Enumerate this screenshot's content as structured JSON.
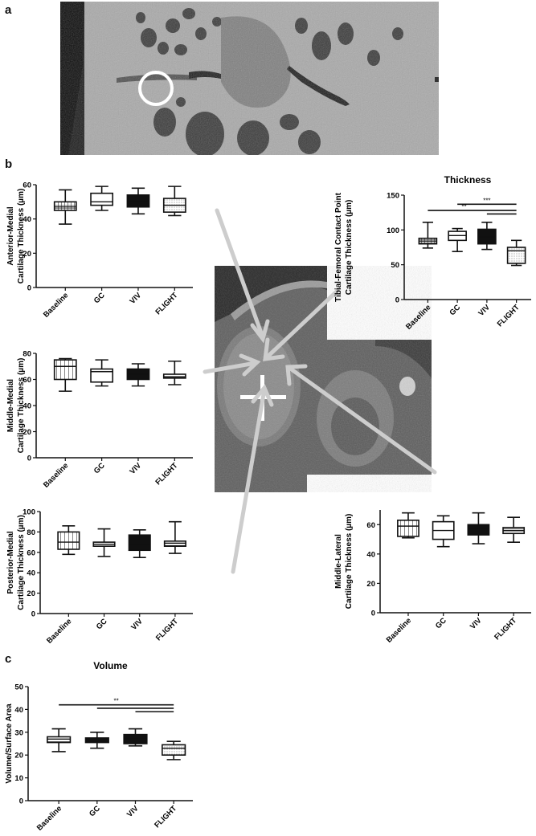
{
  "panels": {
    "a": "a",
    "b": "b",
    "c": "c"
  },
  "images": {
    "top_mri": {
      "name": "sagittal knee MRI with white circle marker",
      "marker": "circle"
    },
    "center_mri": {
      "name": "axial knee MRI with crosshair and arrows",
      "marker": "crosshair"
    }
  },
  "colors": {
    "axis": "#111111",
    "arrow": "#cfcfcf",
    "marker": "#ffffff"
  },
  "chart_data": [
    {
      "id": "anterior_medial",
      "type": "box",
      "title": "",
      "ylabel_line1": "Anterior-Medial",
      "ylabel_line2": "Cartilage Thickness (µm)",
      "categories": [
        "Baseline",
        "GC",
        "VIV",
        "FLIGHT"
      ],
      "ylim": [
        0,
        60
      ],
      "yticks": [
        0,
        20,
        40,
        60
      ],
      "boxes": [
        {
          "min": 37,
          "q1": 45,
          "median": 47,
          "q3": 50,
          "max": 57,
          "fill": "grid"
        },
        {
          "min": 45,
          "q1": 48,
          "median": 50,
          "q3": 55,
          "max": 59,
          "fill": "white"
        },
        {
          "min": 43,
          "q1": 47,
          "median": 50,
          "q3": 54,
          "max": 58,
          "fill": "black"
        },
        {
          "min": 42,
          "q1": 44,
          "median": 48,
          "q3": 52,
          "max": 59,
          "fill": "dots"
        }
      ],
      "significance": []
    },
    {
      "id": "tibial_femoral",
      "type": "box",
      "title": "Thickness",
      "ylabel_line1": "Tibial-Femoral  Contact  Point",
      "ylabel_line2": "Cartilage Thickness (µm)",
      "categories": [
        "Baseline",
        "GC",
        "VIV",
        "FLIGHT"
      ],
      "ylim": [
        0,
        150
      ],
      "yticks": [
        0,
        50,
        100,
        150
      ],
      "boxes": [
        {
          "min": 74,
          "q1": 80,
          "median": 84,
          "q3": 88,
          "max": 111,
          "fill": "grid"
        },
        {
          "min": 69,
          "q1": 85,
          "median": 92,
          "q3": 98,
          "max": 102,
          "fill": "white"
        },
        {
          "min": 72,
          "q1": 80,
          "median": 90,
          "q3": 101,
          "max": 111,
          "fill": "black"
        },
        {
          "min": 49,
          "q1": 52,
          "median": 70,
          "q3": 75,
          "max": 85,
          "fill": "dots"
        }
      ],
      "significance": [
        {
          "from": 1,
          "to": 3,
          "label": "***",
          "level": 137
        },
        {
          "from": 0,
          "to": 3,
          "label": "**",
          "level": 128
        },
        {
          "from": 2,
          "to": 3,
          "label": "",
          "level": 123
        }
      ]
    },
    {
      "id": "middle_medial",
      "type": "box",
      "title": "",
      "ylabel_line1": "Middle-Medial",
      "ylabel_line2": "Cartilage Thickness (µm)",
      "categories": [
        "Baseline",
        "GC",
        "VIV",
        "FLIGHT"
      ],
      "ylim": [
        0,
        80
      ],
      "yticks": [
        0,
        20,
        40,
        60,
        80
      ],
      "boxes": [
        {
          "min": 51,
          "q1": 60,
          "median": 70,
          "q3": 75,
          "max": 76,
          "fill": "vlines"
        },
        {
          "min": 55,
          "q1": 58,
          "median": 66,
          "q3": 68,
          "max": 75,
          "fill": "white"
        },
        {
          "min": 55,
          "q1": 60,
          "median": 64,
          "q3": 68,
          "max": 72,
          "fill": "black"
        },
        {
          "min": 56,
          "q1": 61,
          "median": 62,
          "q3": 64,
          "max": 74,
          "fill": "hlines"
        }
      ],
      "significance": []
    },
    {
      "id": "posterior_medial",
      "type": "box",
      "title": "",
      "ylabel_line1": "Posterior-Medial",
      "ylabel_line2": "Cartilage Thickness (µm)",
      "categories": [
        "Baseline",
        "GC",
        "VIV",
        "FLIGHT"
      ],
      "ylim": [
        0,
        100
      ],
      "yticks": [
        0,
        20,
        40,
        60,
        80,
        100
      ],
      "boxes": [
        {
          "min": 58,
          "q1": 63,
          "median": 70,
          "q3": 80,
          "max": 86,
          "fill": "vlines"
        },
        {
          "min": 56,
          "q1": 66,
          "median": 68,
          "q3": 70,
          "max": 83,
          "fill": "white"
        },
        {
          "min": 55,
          "q1": 62,
          "median": 68,
          "q3": 77,
          "max": 82,
          "fill": "black"
        },
        {
          "min": 59,
          "q1": 66,
          "median": 69,
          "q3": 71,
          "max": 90,
          "fill": "hlines"
        }
      ],
      "significance": []
    },
    {
      "id": "middle_lateral",
      "type": "box",
      "title": "",
      "ylabel_line1": "Middle-Lateral",
      "ylabel_line2": "Cartilage Thickness (µm)",
      "categories": [
        "Baseline",
        "GC",
        "VIV",
        "FLIGHT"
      ],
      "ylim": [
        0,
        70
      ],
      "yticks": [
        0,
        20,
        40,
        60
      ],
      "boxes": [
        {
          "min": 51,
          "q1": 52,
          "median": 59,
          "q3": 63,
          "max": 68,
          "fill": "vlines"
        },
        {
          "min": 45,
          "q1": 50,
          "median": 56,
          "q3": 62,
          "max": 66,
          "fill": "white"
        },
        {
          "min": 47,
          "q1": 53,
          "median": 57,
          "q3": 60,
          "max": 68,
          "fill": "black"
        },
        {
          "min": 48,
          "q1": 54,
          "median": 56,
          "q3": 58,
          "max": 65,
          "fill": "hlines"
        }
      ],
      "significance": []
    },
    {
      "id": "volume",
      "type": "box",
      "title": "Volume",
      "ylabel_line1": "",
      "ylabel_line2": "Volume/Surface  Area",
      "categories": [
        "Baseline",
        "GC",
        "VIV",
        "FLIGHT"
      ],
      "ylim": [
        0,
        50
      ],
      "yticks": [
        0,
        10,
        20,
        30,
        40,
        50
      ],
      "boxes": [
        {
          "min": 21.5,
          "q1": 25.5,
          "median": 27,
          "q3": 28,
          "max": 31.5,
          "fill": "hlines"
        },
        {
          "min": 23,
          "q1": 25.5,
          "median": 26.5,
          "q3": 27.5,
          "max": 30,
          "fill": "black"
        },
        {
          "min": 24,
          "q1": 25,
          "median": 27,
          "q3": 29,
          "max": 31.5,
          "fill": "black"
        },
        {
          "min": 18,
          "q1": 20,
          "median": 23,
          "q3": 24.5,
          "max": 26,
          "fill": "dots"
        }
      ],
      "significance": [
        {
          "from": 0,
          "to": 3,
          "label": "**",
          "level": 42
        },
        {
          "from": 1,
          "to": 3,
          "label": "",
          "level": 40.5
        },
        {
          "from": 2,
          "to": 3,
          "label": "",
          "level": 39
        }
      ]
    }
  ]
}
